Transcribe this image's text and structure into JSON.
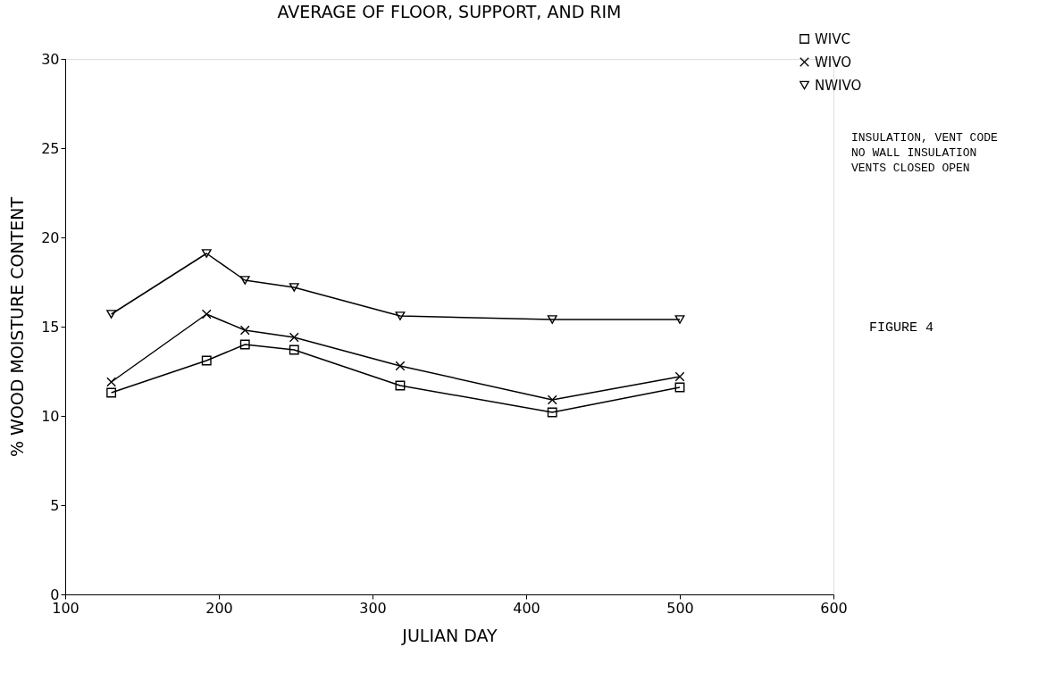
{
  "chart_data": {
    "type": "line",
    "title": "AVERAGE OF FLOOR, SUPPORT, AND RIM",
    "xlabel": "JULIAN DAY",
    "ylabel": "% WOOD MOISTURE CONTENT",
    "x": [
      130,
      192,
      217,
      249,
      318,
      417,
      500
    ],
    "series": [
      {
        "name": "WIVC",
        "color": "#000000",
        "marker": "square",
        "values": [
          11.3,
          13.1,
          14.0,
          13.7,
          11.7,
          10.2,
          11.6
        ]
      },
      {
        "name": "WIVO",
        "color": "#000000",
        "marker": "cross",
        "values": [
          11.9,
          15.7,
          14.8,
          14.4,
          12.8,
          10.9,
          12.2
        ]
      },
      {
        "name": "NWIVO",
        "color": "#000000",
        "marker": "triangle",
        "values": [
          15.7,
          19.1,
          17.6,
          17.2,
          15.6,
          15.4,
          15.4
        ]
      }
    ],
    "xlim": [
      100,
      600
    ],
    "xticks": [
      100,
      200,
      300,
      400,
      500,
      600
    ],
    "ylim": [
      0,
      30
    ],
    "yticks": [
      0,
      5,
      10,
      15,
      20,
      25,
      30
    ],
    "grid": false,
    "legend": "top right",
    "line_style": "solid",
    "annotations": [
      "INSULATION, VENT CODE",
      "NO WALL INSULATION",
      "VENTS CLOSED OPEN",
      "FIGURE 4"
    ]
  }
}
